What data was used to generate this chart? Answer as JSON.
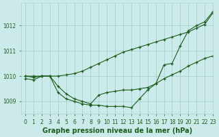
{
  "title": "Graphe pression niveau de la mer (hPa)",
  "bg_color": "#cdeaea",
  "grid_color": "#a8d5d5",
  "line_color": "#1a5c1a",
  "xlim": [
    -0.5,
    23
  ],
  "ylim": [
    1008.5,
    1012.9
  ],
  "yticks": [
    1009,
    1010,
    1011,
    1012
  ],
  "xticks": [
    0,
    1,
    2,
    3,
    4,
    5,
    6,
    7,
    8,
    9,
    10,
    11,
    12,
    13,
    14,
    15,
    16,
    17,
    18,
    19,
    20,
    21,
    22,
    23
  ],
  "series_upper_x": [
    0,
    1,
    2,
    3,
    4,
    5,
    6,
    7,
    8,
    9,
    10,
    11,
    12,
    13,
    14,
    15,
    16,
    17,
    18,
    19,
    20,
    21,
    22,
    23
  ],
  "series_upper_y": [
    1010.0,
    1010.0,
    1010.0,
    1010.0,
    1010.0,
    1010.05,
    1010.1,
    1010.2,
    1010.35,
    1010.5,
    1010.65,
    1010.8,
    1010.95,
    1011.05,
    1011.15,
    1011.25,
    1011.35,
    1011.45,
    1011.55,
    1011.65,
    1011.75,
    1011.9,
    1012.05,
    1012.5
  ],
  "series_mid_x": [
    0,
    1,
    2,
    3,
    4,
    5,
    6,
    7,
    8,
    9,
    10,
    11,
    12,
    13,
    14,
    15,
    16,
    17,
    18,
    19,
    20,
    21,
    22,
    23
  ],
  "series_mid_y": [
    1010.0,
    1009.95,
    1010.0,
    1010.0,
    1009.6,
    1009.3,
    1009.1,
    1009.0,
    1008.9,
    1009.25,
    1009.35,
    1009.4,
    1009.45,
    1009.45,
    1009.5,
    1009.55,
    1009.7,
    1009.9,
    1010.05,
    1010.2,
    1010.4,
    1010.55,
    1010.7,
    1010.8
  ],
  "series_lower_x": [
    0,
    1,
    2,
    3,
    4,
    5,
    6,
    7,
    8,
    9,
    10,
    11,
    12,
    13,
    14,
    15,
    16,
    17,
    18,
    19,
    20,
    21,
    22,
    23
  ],
  "series_lower_y": [
    1009.9,
    1009.85,
    1010.0,
    1010.0,
    1009.35,
    1009.1,
    1009.0,
    1008.9,
    1008.85,
    1008.85,
    1008.8,
    1008.8,
    1008.8,
    1008.75,
    1009.1,
    1009.45,
    1009.7,
    1010.45,
    1010.5,
    1011.2,
    1011.8,
    1012.0,
    1012.15,
    1012.55
  ],
  "title_fontsize": 7,
  "tick_fontsize": 5.5
}
